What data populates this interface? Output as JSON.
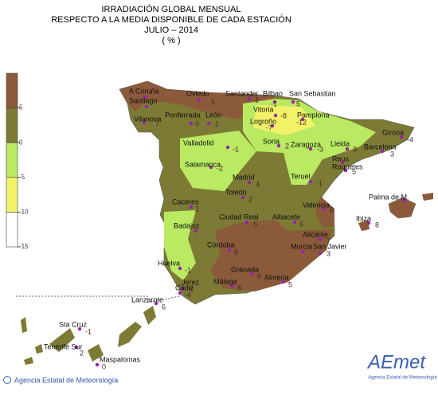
{
  "header": {
    "lines": [
      "IRRADIACIÓN GLOBAL MENSUAL",
      "RESPECTO A LA MEDIA DISPONIBLE DE CADA ESTACIÓN",
      "JULIO – 2014",
      "( % )"
    ]
  },
  "legend": {
    "ticks": [
      5,
      0,
      -5,
      -10,
      -15
    ],
    "colors": [
      "#8b5a3a",
      "#7d7a35",
      "#b9ea62",
      "#f2f268",
      "#ffffff"
    ]
  },
  "stations": [
    {
      "name": "A Coruña"
    },
    {
      "name": "Santiago"
    },
    {
      "name": "Vilanova",
      "value": 7
    },
    {
      "name": "Oviedo",
      "value": 5
    },
    {
      "name": "Santander",
      "value": 1
    },
    {
      "name": "Bilbao",
      "value": -1
    },
    {
      "name": "San Sebastian",
      "value": 5
    },
    {
      "name": "Vitoria",
      "value": -8
    },
    {
      "name": "Pamplona",
      "value": -12
    },
    {
      "name": "Logroño",
      "value": -7
    },
    {
      "name": "Ponferrada",
      "value": 0
    },
    {
      "name": "León",
      "value": 1
    },
    {
      "name": "Soria",
      "value": 2
    },
    {
      "name": "Zaragoza",
      "value": -3
    },
    {
      "name": "Lleida",
      "value": 3
    },
    {
      "name": "Girona",
      "value": -4
    },
    {
      "name": "Barcelona",
      "value": 3
    },
    {
      "name": "Valladolid",
      "value": -1
    },
    {
      "name": "Salamanca",
      "value": -2
    },
    {
      "name": "Reus"
    },
    {
      "name": "Roquetes",
      "value": 5
    },
    {
      "name": "Teruel",
      "value": -1
    },
    {
      "name": "Madrid",
      "value": 4
    },
    {
      "name": "Toledo",
      "value": 2
    },
    {
      "name": "Palma de M."
    },
    {
      "name": "Caceres",
      "value": 2
    },
    {
      "name": "Valencia",
      "value": 6
    },
    {
      "name": "Ibiza",
      "value": 8
    },
    {
      "name": "Ciudad Real",
      "value": 5
    },
    {
      "name": "Albacete",
      "value": 6
    },
    {
      "name": "Badajoz"
    },
    {
      "name": "Alicante",
      "value": 7
    },
    {
      "name": "Córdoba",
      "value": 6
    },
    {
      "name": "Murcia"
    },
    {
      "name": "San Javier",
      "value": 3
    },
    {
      "name": "Huelva",
      "value": -1
    },
    {
      "name": "Granada",
      "value": 6
    },
    {
      "name": "Almeria",
      "value": 5
    },
    {
      "name": "Jerez",
      "value": 0
    },
    {
      "name": "Cádiz",
      "value": -4
    },
    {
      "name": "Málaga",
      "value": 8
    },
    {
      "name": "Lanzarote",
      "value": 6
    },
    {
      "name": "Sta Cruz",
      "value": -1
    },
    {
      "name": "Tenerife Sur",
      "value": 2
    },
    {
      "name": "Maspalomas",
      "value": 0
    }
  ],
  "footer": {
    "agency": "Agencia Estatal de Meteorología",
    "logo": "AEmet",
    "logo_caption": "Agencia Estatal de Meteorología"
  }
}
